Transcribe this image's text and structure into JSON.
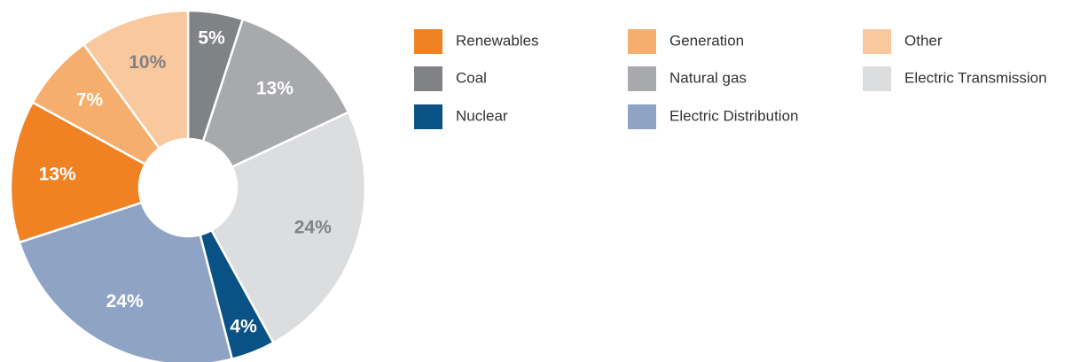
{
  "chart_data": {
    "type": "donut",
    "categories": [
      "Coal",
      "Natural gas",
      "Electric Transmission",
      "Nuclear",
      "Electric Distribution",
      "Renewables",
      "Generation",
      "Other"
    ],
    "values": [
      5,
      13,
      24,
      4,
      24,
      13,
      7,
      10
    ],
    "value_labels": [
      "5%",
      "13%",
      "24%",
      "4%",
      "24%",
      "13%",
      "7%",
      "10%"
    ],
    "colors": [
      "#808285",
      "#a7a9ac",
      "#dcdddf",
      "#0a5286",
      "#8fa4c4",
      "#f08224",
      "#f5ae6e",
      "#f9c89d"
    ],
    "legend": "right"
  }
}
